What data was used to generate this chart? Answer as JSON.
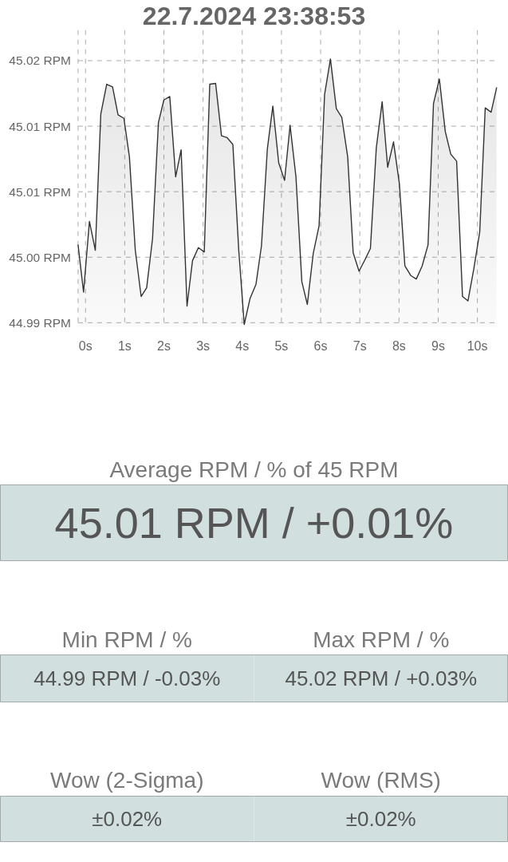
{
  "chart_data": [
    {
      "type": "area",
      "title": "22.7.2024 23:38:53",
      "x": [
        -0.19,
        -0.05,
        0.1,
        0.25,
        0.39,
        0.54,
        0.69,
        0.83,
        0.98,
        1.12,
        1.27,
        1.42,
        1.56,
        1.71,
        1.86,
        2.0,
        2.15,
        2.3,
        2.44,
        2.59,
        2.73,
        2.88,
        3.03,
        3.17,
        3.32,
        3.47,
        3.61,
        3.76,
        3.91,
        4.05,
        4.2,
        4.35,
        4.49,
        4.64,
        4.78,
        4.93,
        5.08,
        5.22,
        5.37,
        5.52,
        5.66,
        5.81,
        5.96,
        6.1,
        6.25,
        6.4,
        6.54,
        6.69,
        6.83,
        6.98,
        7.13,
        7.27,
        7.42,
        7.57,
        7.71,
        7.86,
        8.01,
        8.15,
        8.3,
        8.44,
        8.59,
        8.74,
        8.88,
        9.03,
        9.18,
        9.32,
        9.47,
        9.62,
        9.76,
        9.91,
        10.06,
        10.2,
        10.35,
        10.49
      ],
      "values": [
        44.9989,
        44.9935,
        45.0016,
        44.9983,
        45.0139,
        45.0173,
        45.017,
        45.0138,
        45.0134,
        45.009,
        44.9983,
        44.993,
        44.994,
        44.9996,
        45.0129,
        45.0155,
        45.0159,
        45.0067,
        45.0098,
        44.9919,
        44.9971,
        44.9986,
        44.9981,
        45.0173,
        45.0174,
        45.0114,
        45.0112,
        45.0104,
        44.9983,
        44.9898,
        44.9928,
        44.9944,
        44.9988,
        45.0099,
        45.0148,
        45.0083,
        45.0063,
        45.0126,
        45.0067,
        44.9947,
        44.9921,
        44.9979,
        45.0011,
        45.0161,
        45.0202,
        45.0145,
        45.0135,
        45.009,
        44.998,
        44.9959,
        44.9972,
        44.9985,
        45.01,
        45.0153,
        45.0078,
        45.0107,
        45.0059,
        44.9965,
        44.9954,
        44.995,
        44.9965,
        44.9989,
        45.0151,
        45.0179,
        45.0119,
        45.0093,
        45.0085,
        44.993,
        44.9925,
        44.9962,
        45.0004,
        45.0146,
        45.0141,
        45.0169
      ],
      "color": "#333333",
      "xlim": [
        -0.19,
        10.49
      ],
      "xticks": [
        {
          "value": 0,
          "label": "0s"
        },
        {
          "value": 1,
          "label": "1s"
        },
        {
          "value": 2,
          "label": "2s"
        },
        {
          "value": 3,
          "label": "3s"
        },
        {
          "value": 4,
          "label": "4s"
        },
        {
          "value": 5,
          "label": "5s"
        },
        {
          "value": 6,
          "label": "6s"
        },
        {
          "value": 7,
          "label": "7s"
        },
        {
          "value": 8,
          "label": "8s"
        },
        {
          "value": 9,
          "label": "9s"
        },
        {
          "value": 10,
          "label": "10s"
        }
      ],
      "ylim": [
        44.9895,
        45.0235
      ],
      "yticks": [
        {
          "value": 44.99,
          "label": "44.99 RPM"
        },
        {
          "value": 44.9975,
          "label": "45.00 RPM"
        },
        {
          "value": 45.005,
          "label": "45.01 RPM"
        },
        {
          "value": 45.0125,
          "label": "45.01 RPM"
        },
        {
          "value": 45.02,
          "label": "45.02 RPM"
        }
      ],
      "grid": true
    },
    {
      "type": "other",
      "title": "Average RPM / % of 45 RPM",
      "annotations": [
        "45.01 RPM / +0.01%"
      ]
    },
    {
      "type": "other",
      "title": "Min RPM / %",
      "annotations": [
        "44.99 RPM / -0.03%"
      ]
    },
    {
      "type": "other",
      "title": "Max RPM / %",
      "annotations": [
        "45.02 RPM / +0.03%"
      ]
    },
    {
      "type": "other",
      "title": "Wow (2-Sigma)",
      "annotations": [
        "±0.02%"
      ]
    },
    {
      "type": "other",
      "title": "Wow (RMS)",
      "annotations": [
        "±0.02%"
      ]
    }
  ]
}
